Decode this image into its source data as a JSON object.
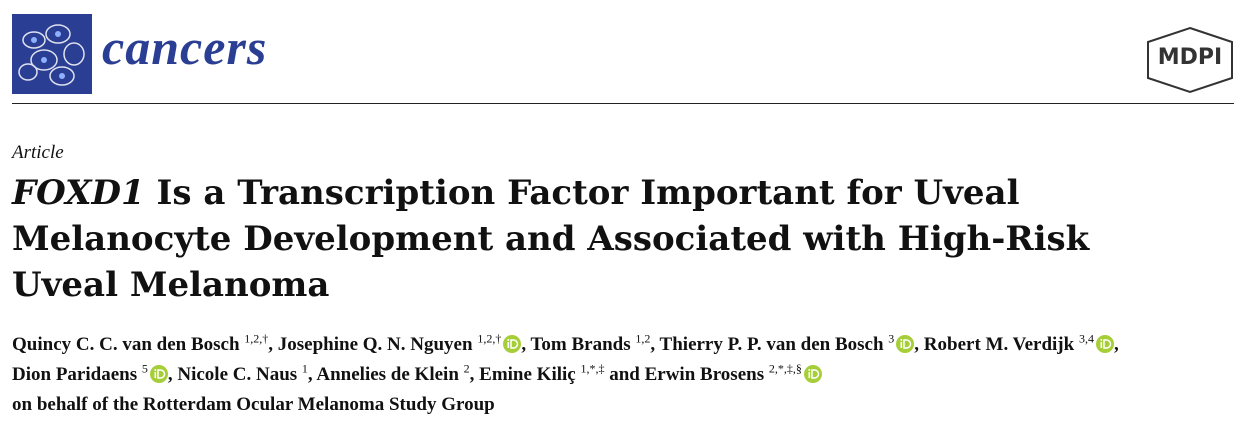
{
  "header": {
    "journal": "cancers",
    "publisher": "MDPI"
  },
  "article": {
    "type": "Article",
    "title_gene": "FOXD1",
    "title_rest": " Is a Transcription Factor Important for Uveal Melanocyte Development and Associated with High-Risk Uveal Melanoma"
  },
  "authors": [
    {
      "name": "Quincy C. C. van den Bosch",
      "sup": "1,2,†",
      "after": ","
    },
    {
      "name": "Josephine Q. N. Nguyen",
      "sup": "1,2,†",
      "after": ","
    },
    {
      "name": "Tom Brands",
      "sup": "1,2",
      "after": ","
    },
    {
      "name": "Thierry P. P. van den Bosch",
      "sup": "3",
      "after": ","
    },
    {
      "name": "Robert M. Verdijk",
      "sup": "3,4",
      "after": ","
    },
    {
      "name": "Dion Paridaens",
      "sup": "5",
      "after": ","
    },
    {
      "name": "Nicole C. Naus",
      "sup": "1",
      "after": ","
    },
    {
      "name": "Annelies de Klein",
      "sup": "2",
      "after": ","
    },
    {
      "name": "Emine Kiliç",
      "sup": "1,*,‡",
      "after": "and"
    },
    {
      "name": "Erwin Brosens",
      "sup": "2,*,‡,§",
      "after": "on behalf of the Rotterdam Ocular Melanoma Study Group"
    }
  ]
}
